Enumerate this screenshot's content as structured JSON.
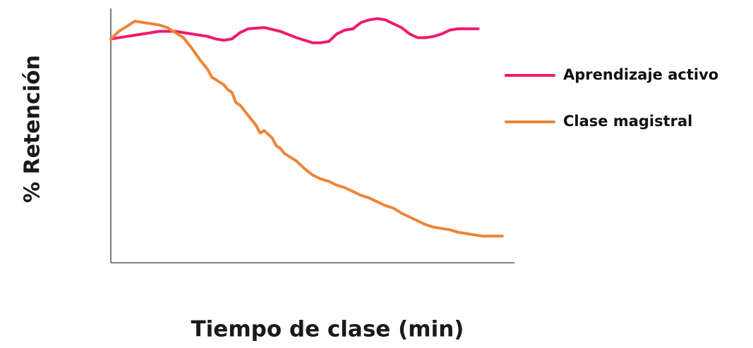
{
  "chart_data": {
    "type": "line",
    "title": "",
    "xlabel": "Tiempo de clase (min)",
    "ylabel": "% Retención",
    "xlim": [
      0,
      100
    ],
    "ylim": [
      0,
      100
    ],
    "grid": false,
    "ticks": false,
    "legend_placement": "right",
    "series": [
      {
        "name": "Aprendizaje activo",
        "color": "#f0196e",
        "x": [
          0,
          4,
          8,
          12,
          16,
          20,
          24,
          26,
          28,
          30,
          32,
          34,
          38,
          42,
          46,
          48,
          50,
          52,
          54,
          56,
          58,
          60,
          62,
          64,
          66,
          68,
          70,
          72,
          74,
          76,
          78,
          80,
          82,
          84,
          86,
          88,
          90,
          91
        ],
        "y": [
          88,
          89,
          90,
          91,
          91,
          90,
          89,
          88,
          87.5,
          88,
          90.5,
          92,
          92.5,
          91,
          88.5,
          87.5,
          86.5,
          86.5,
          87,
          90,
          91.5,
          92,
          94.5,
          95.5,
          96,
          95.5,
          94,
          92.5,
          90,
          88.5,
          88.5,
          89,
          90,
          91.5,
          92,
          92,
          92,
          92
        ]
      },
      {
        "name": "Clase magistral",
        "color": "#ef8435",
        "x": [
          0,
          2,
          4,
          6,
          8,
          10,
          12,
          14,
          16,
          18,
          20,
          22,
          24,
          25,
          26,
          28,
          29,
          30,
          31,
          32,
          33,
          34,
          35,
          36,
          37,
          38,
          39,
          40,
          41,
          42,
          43,
          44,
          46,
          48,
          50,
          52,
          54,
          56,
          58,
          60,
          62,
          64,
          66,
          68,
          70,
          72,
          74,
          76,
          78,
          80,
          82,
          84,
          86,
          88,
          90,
          92,
          94,
          96,
          97
        ],
        "y": [
          88,
          91,
          93,
          95,
          94.5,
          94,
          93.5,
          92.5,
          90.5,
          88.5,
          84.5,
          80,
          76,
          73,
          72,
          70,
          68,
          67,
          63,
          62,
          60,
          58,
          56,
          54,
          51,
          52,
          50.5,
          49,
          46,
          45,
          43,
          42,
          40,
          37,
          34.5,
          33,
          32,
          30.5,
          29.5,
          28,
          26.5,
          25.5,
          24,
          22.5,
          21.5,
          19.5,
          18,
          16.5,
          15,
          14,
          13.5,
          13,
          12,
          11.5,
          11,
          10.5,
          10.5,
          10.5,
          10.5
        ]
      }
    ]
  }
}
